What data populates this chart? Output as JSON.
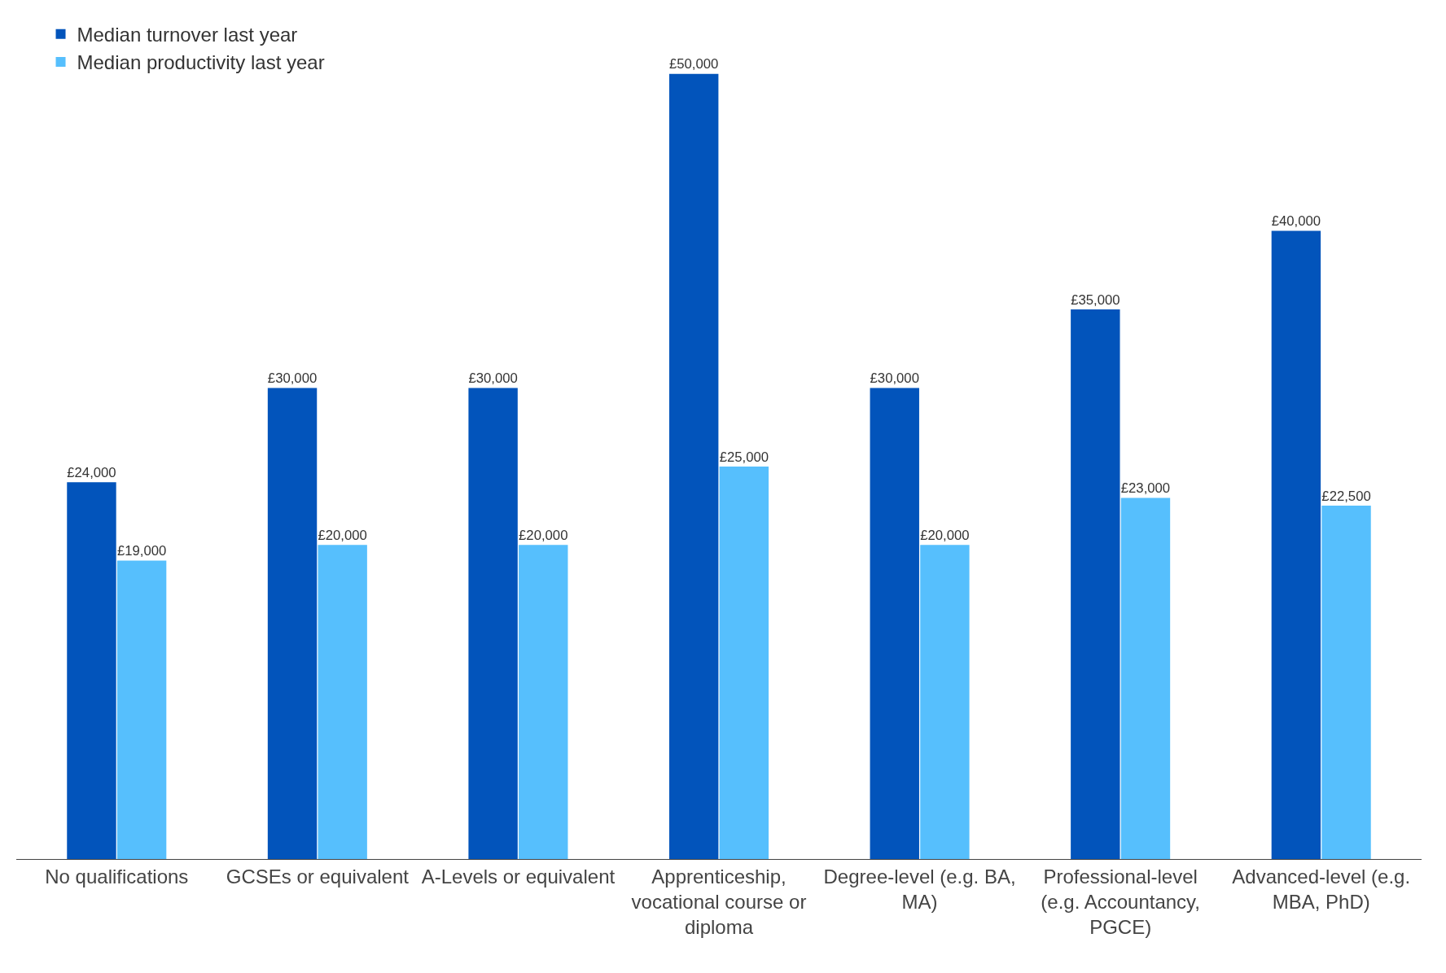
{
  "chart_data": {
    "type": "bar",
    "categories": [
      "No qualifications",
      "GCSEs or equivalent",
      "A-Levels or equivalent",
      "Apprenticeship, vocational course or diploma",
      "Degree-level (e.g. BA, MA)",
      "Professional-level (e.g. Accountancy, PGCE)",
      "Advanced-level (e.g. MBA, PhD)"
    ],
    "series": [
      {
        "name": "Median turnover last year",
        "color": "#0254bb",
        "values": [
          24000,
          30000,
          30000,
          50000,
          30000,
          35000,
          40000
        ],
        "value_labels": [
          "£24,000",
          "£30,000",
          "£30,000",
          "£50,000",
          "£30,000",
          "£35,000",
          "£40,000"
        ]
      },
      {
        "name": "Median productivity last year",
        "color": "#56bffd",
        "values": [
          19000,
          20000,
          20000,
          25000,
          20000,
          23000,
          22500
        ],
        "value_labels": [
          "£19,000",
          "£20,000",
          "£20,000",
          "£25,000",
          "£20,000",
          "£23,000",
          "£22,500"
        ]
      }
    ],
    "legend": "top left",
    "grid": false
  }
}
